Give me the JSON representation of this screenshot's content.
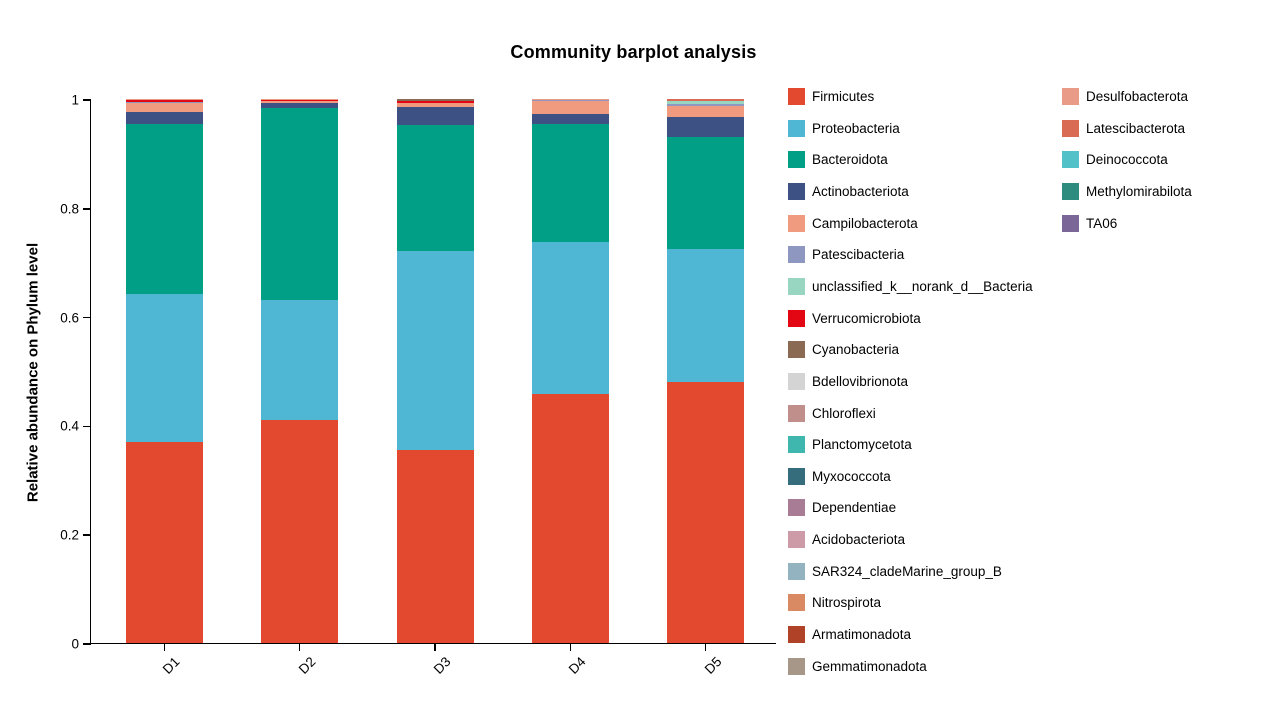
{
  "title": "Community barplot analysis",
  "ylabel": "Relative abundance on Phylum level",
  "chart_data": {
    "type": "bar",
    "stacked": true,
    "title": "Community barplot analysis",
    "xlabel": "",
    "ylabel": "Relative abundance on Phylum level",
    "ylim": [
      0,
      1
    ],
    "y_ticks": [
      "0",
      "0.2",
      "0.4",
      "0.6",
      "0.8",
      "1"
    ],
    "y_tick_values": [
      0,
      0.2,
      0.4,
      0.6,
      0.8,
      1
    ],
    "grid": false,
    "legend_position": "right, two columns, first 19 items in column 1",
    "legend_col2_start_index": 19,
    "categories": [
      "D1",
      "D2",
      "D3",
      "D4",
      "D5"
    ],
    "series": [
      {
        "name": "Firmicutes",
        "color": "#E2492F",
        "values": [
          0.37,
          0.41,
          0.355,
          0.458,
          0.48
        ]
      },
      {
        "name": "Proteobacteria",
        "color": "#4FB6D3",
        "values": [
          0.272,
          0.22,
          0.365,
          0.279,
          0.244
        ]
      },
      {
        "name": "Bacteroidota",
        "color": "#029F87",
        "values": [
          0.312,
          0.353,
          0.233,
          0.217,
          0.206
        ]
      },
      {
        "name": "Actinobacteriota",
        "color": "#3E5184",
        "values": [
          0.022,
          0.01,
          0.032,
          0.018,
          0.037
        ]
      },
      {
        "name": "Campilobacterota",
        "color": "#F09B80",
        "values": [
          0.016,
          0.003,
          0.008,
          0.025,
          0.02
        ]
      },
      {
        "name": "Patescibacteria",
        "color": "#8D97BF",
        "values": [
          0.002,
          0.0,
          0.0,
          0.0015,
          0.004
        ]
      },
      {
        "name": "unclassified_k__norank_d__Bacteria",
        "color": "#99D6C1",
        "values": [
          0.0,
          0.0,
          0.0,
          0.0,
          0.005
        ]
      },
      {
        "name": "Verrucomicrobiota",
        "color": "#E30613",
        "values": [
          0.004,
          0.002,
          0.004,
          0.0,
          0.0
        ]
      },
      {
        "name": "Cyanobacteria",
        "color": "#8A6A53",
        "values": [
          0.0,
          0.0,
          0.003,
          0.0,
          0.0
        ]
      },
      {
        "name": "Bdellovibrionota",
        "color": "#D4D4D4",
        "values": [
          0.0,
          0.0,
          0.0,
          0.0,
          0.0
        ]
      },
      {
        "name": "Chloroflexi",
        "color": "#C18F8B",
        "values": [
          0.0,
          0.0,
          0.0,
          0.0,
          0.0
        ]
      },
      {
        "name": "Planctomycetota",
        "color": "#3FB7AE",
        "values": [
          0.0,
          0.0,
          0.0,
          0.0,
          0.0
        ]
      },
      {
        "name": "Myxococcota",
        "color": "#356D7C",
        "values": [
          0.0,
          0.0,
          0.0,
          0.0,
          0.0
        ]
      },
      {
        "name": "Dependentiae",
        "color": "#A87C95",
        "values": [
          0.0,
          0.0,
          0.0,
          0.0,
          0.0
        ]
      },
      {
        "name": "Acidobacteriota",
        "color": "#CD9AA8",
        "values": [
          0.0,
          0.0,
          0.0,
          0.0,
          0.0
        ]
      },
      {
        "name": "SAR324_cladeMarine_group_B",
        "color": "#93B3C1",
        "values": [
          0.0,
          0.0,
          0.0,
          0.0,
          0.0
        ]
      },
      {
        "name": "Nitrospirota",
        "color": "#DA8A62",
        "values": [
          0.0,
          0.0,
          0.0,
          0.0,
          0.0
        ]
      },
      {
        "name": "Armatimonadota",
        "color": "#B04227",
        "values": [
          0.0,
          0.0,
          0.0,
          0.0,
          0.0
        ]
      },
      {
        "name": "Gemmatimonadota",
        "color": "#A79789",
        "values": [
          0.0,
          0.0,
          0.0,
          0.0,
          0.0
        ]
      },
      {
        "name": "Desulfobacterota",
        "color": "#EA9B87",
        "values": [
          0.002,
          0.002,
          0.0,
          0.0015,
          0.0
        ]
      },
      {
        "name": "Latescibacterota",
        "color": "#D96A54",
        "values": [
          0.0,
          0.0,
          0.0,
          0.0,
          0.004
        ]
      },
      {
        "name": "Deinococcota",
        "color": "#52C2C8",
        "values": [
          0.0,
          0.0,
          0.0,
          0.0,
          0.0
        ]
      },
      {
        "name": "Methylomirabilota",
        "color": "#2E8C7E",
        "values": [
          0.0,
          0.0,
          0.0,
          0.0,
          0.0
        ]
      },
      {
        "name": "TA06",
        "color": "#7A6697",
        "values": [
          0.0,
          0.0,
          0.0,
          0.0,
          0.0
        ]
      }
    ]
  }
}
